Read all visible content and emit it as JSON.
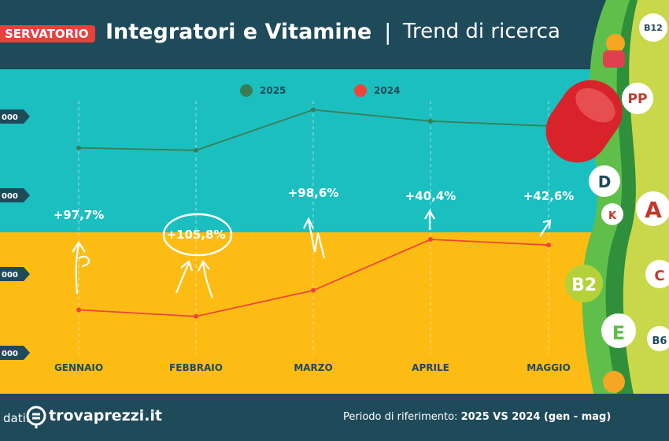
{
  "header": {
    "badge": "SERVATORIO",
    "title": "Integratori e Vitamine",
    "separator": "|",
    "subtitle": "Trend di ricerca"
  },
  "footer": {
    "source_label": "dati:",
    "brand": "trovaprezzi.it",
    "period_label": "Periodo di riferimento:",
    "period_value": "2025 VS 2024 (gen - mag)"
  },
  "colors": {
    "teal": "#1cbfbf",
    "yellow": "#fcbc14",
    "navy": "#1e4a5a",
    "series_2025": "#3a7d55",
    "series_2024": "#f0443a"
  },
  "vitamin_labels": [
    "B12",
    "PP",
    "D",
    "K",
    "A",
    "B2",
    "C",
    "E",
    "B6"
  ],
  "chart_data": {
    "type": "line",
    "categories": [
      "GENNAIO",
      "FEBBRAIO",
      "MARZO",
      "APRILE",
      "MAGGIO"
    ],
    "y_tick_labels": [
      "000",
      "000",
      "000",
      "000"
    ],
    "series": [
      {
        "name": "2025",
        "color": "#3a7d55",
        "values": [
          2.53,
          2.5,
          3.0,
          2.86,
          2.8
        ]
      },
      {
        "name": "2024",
        "color": "#f0443a",
        "values": [
          0.53,
          0.45,
          0.77,
          1.4,
          1.33
        ]
      }
    ],
    "ylim": [
      0,
      3.5
    ],
    "annotations": [
      "+97,7%",
      "+105,8%",
      "+98,6%",
      "+40,4%",
      "+42,6%"
    ],
    "legend": "top-center"
  }
}
